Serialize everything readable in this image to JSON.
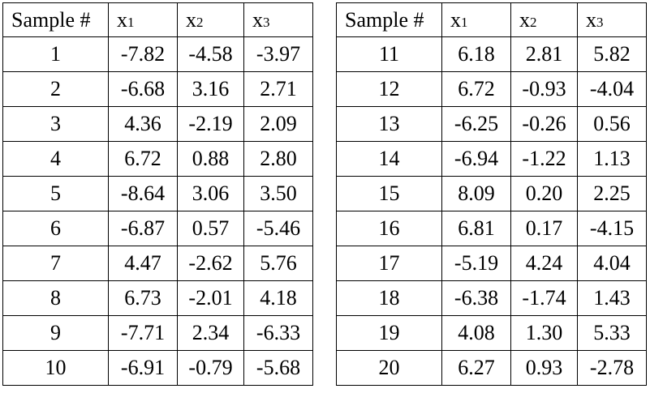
{
  "tables": [
    {
      "header": [
        "Sample #",
        {
          "base": "x",
          "sub": "1"
        },
        {
          "base": "x",
          "sub": "2"
        },
        {
          "base": "x",
          "sub": "3"
        }
      ],
      "rows": [
        [
          "1",
          "-7.82",
          "-4.58",
          "-3.97"
        ],
        [
          "2",
          "-6.68",
          "3.16",
          "2.71"
        ],
        [
          "3",
          "4.36",
          "-2.19",
          "2.09"
        ],
        [
          "4",
          "6.72",
          "0.88",
          "2.80"
        ],
        [
          "5",
          "-8.64",
          "3.06",
          "3.50"
        ],
        [
          "6",
          "-6.87",
          "0.57",
          "-5.46"
        ],
        [
          "7",
          "4.47",
          "-2.62",
          "5.76"
        ],
        [
          "8",
          "6.73",
          "-2.01",
          "4.18"
        ],
        [
          "9",
          "-7.71",
          "2.34",
          "-6.33"
        ],
        [
          "10",
          "-6.91",
          "-0.79",
          "-5.68"
        ]
      ]
    },
    {
      "header": [
        "Sample #",
        {
          "base": "x",
          "sub": "1"
        },
        {
          "base": "x",
          "sub": "2"
        },
        {
          "base": "x",
          "sub": "3"
        }
      ],
      "rows": [
        [
          "11",
          "6.18",
          "2.81",
          "5.82"
        ],
        [
          "12",
          "6.72",
          "-0.93",
          "-4.04"
        ],
        [
          "13",
          "-6.25",
          "-0.26",
          "0.56"
        ],
        [
          "14",
          "-6.94",
          "-1.22",
          "1.13"
        ],
        [
          "15",
          "8.09",
          "0.20",
          "2.25"
        ],
        [
          "16",
          "6.81",
          "0.17",
          "-4.15"
        ],
        [
          "17",
          "-5.19",
          "4.24",
          "4.04"
        ],
        [
          "18",
          "-6.38",
          "-1.74",
          "1.43"
        ],
        [
          "19",
          "4.08",
          "1.30",
          "5.33"
        ],
        [
          "20",
          "6.27",
          "0.93",
          "-2.78"
        ]
      ]
    }
  ]
}
